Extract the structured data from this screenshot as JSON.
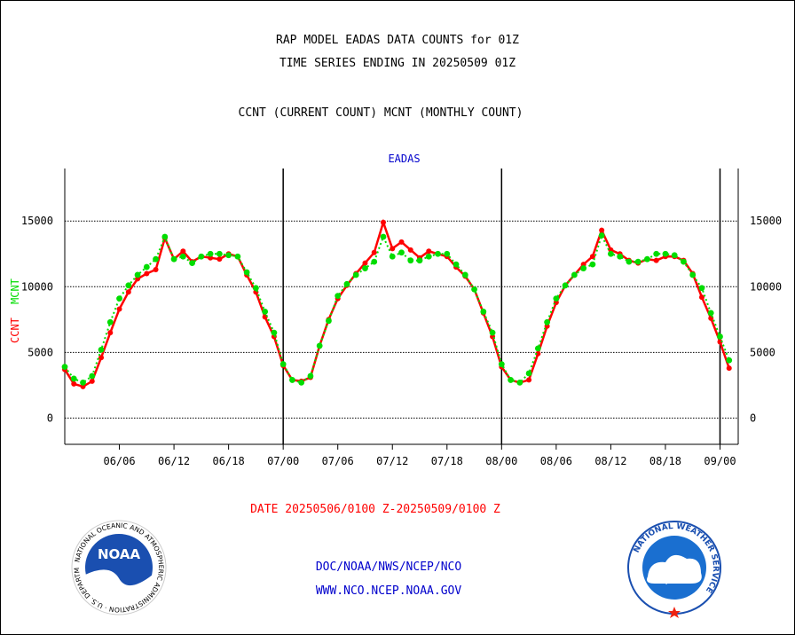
{
  "header": {
    "line1": "RAP MODEL EADAS DATA COUNTS for 01Z",
    "line2": "TIME SERIES ENDING IN 20250509 01Z",
    "line3": "CCNT (CURRENT COUNT) MCNT (MONTHLY COUNT)"
  },
  "colors": {
    "ccnt": "#ff0000",
    "mcnt": "#00ee00",
    "title": "#0000cc",
    "date": "#ff0000",
    "links": "#0000cc"
  },
  "chart_data": {
    "type": "line",
    "title": "EADAS",
    "ylabel_ccnt": "CCNT",
    "ylabel_mcnt": "MCNT",
    "xlim": [
      0,
      74
    ],
    "ylim": [
      -2000,
      19000
    ],
    "grid": true,
    "yticks": [
      0,
      5000,
      10000,
      15000
    ],
    "ytick_labels": [
      "0",
      "5000",
      "10000",
      "15000"
    ],
    "xticks": [
      {
        "x": 6,
        "label": "06/06"
      },
      {
        "x": 12,
        "label": "06/12"
      },
      {
        "x": 18,
        "label": "06/18"
      },
      {
        "x": 24,
        "label": "07/00"
      },
      {
        "x": 30,
        "label": "07/06"
      },
      {
        "x": 36,
        "label": "07/12"
      },
      {
        "x": 42,
        "label": "07/18"
      },
      {
        "x": 48,
        "label": "08/00"
      },
      {
        "x": 54,
        "label": "08/06"
      },
      {
        "x": 60,
        "label": "08/12"
      },
      {
        "x": 66,
        "label": "08/18"
      },
      {
        "x": 72,
        "label": "09/00"
      }
    ],
    "day_boundaries": [
      24,
      48,
      72
    ],
    "series": [
      {
        "name": "CCNT",
        "color": "#ff0000",
        "x": [
          0,
          1,
          2,
          3,
          4,
          5,
          6,
          7,
          8,
          9,
          10,
          11,
          12,
          13,
          14,
          15,
          16,
          17,
          18,
          19,
          20,
          21,
          22,
          23,
          24,
          25,
          26,
          27,
          28,
          29,
          30,
          31,
          32,
          33,
          34,
          35,
          36,
          37,
          38,
          39,
          40,
          41,
          42,
          43,
          44,
          45,
          46,
          47,
          48,
          49,
          50,
          51,
          52,
          53,
          54,
          55,
          56,
          57,
          58,
          59,
          60,
          61,
          62,
          63,
          64,
          65,
          66,
          67,
          68,
          69,
          70,
          71,
          72,
          73
        ],
        "values": [
          3700,
          2600,
          2400,
          2800,
          4600,
          6500,
          8300,
          9600,
          10600,
          11000,
          11300,
          13700,
          12100,
          12700,
          11900,
          12300,
          12200,
          12100,
          12500,
          12300,
          10900,
          9600,
          7700,
          6200,
          4000,
          2900,
          2800,
          3100,
          5500,
          7500,
          9100,
          10100,
          11000,
          11800,
          12600,
          14900,
          12900,
          13400,
          12800,
          12200,
          12700,
          12500,
          12300,
          11500,
          10800,
          9800,
          8000,
          6200,
          3900,
          2900,
          2700,
          2900,
          4900,
          7000,
          8800,
          10100,
          10900,
          11700,
          12300,
          14300,
          12800,
          12500,
          12000,
          11800,
          12100,
          12000,
          12300,
          12300,
          12000,
          11000,
          9200,
          7600,
          5800,
          3800
        ]
      },
      {
        "name": "MCNT",
        "color": "#00dd00",
        "x": [
          0,
          1,
          2,
          3,
          4,
          5,
          6,
          7,
          8,
          9,
          10,
          11,
          12,
          13,
          14,
          15,
          16,
          17,
          18,
          19,
          20,
          21,
          22,
          23,
          24,
          25,
          26,
          27,
          28,
          29,
          30,
          31,
          32,
          33,
          34,
          35,
          36,
          37,
          38,
          39,
          40,
          41,
          42,
          43,
          44,
          45,
          46,
          47,
          48,
          49,
          50,
          51,
          52,
          53,
          54,
          55,
          56,
          57,
          58,
          59,
          60,
          61,
          62,
          63,
          64,
          65,
          66,
          67,
          68,
          69,
          70,
          71,
          72,
          73
        ],
        "values": [
          3900,
          3000,
          2700,
          3200,
          5200,
          7300,
          9100,
          10100,
          10900,
          11500,
          12100,
          13800,
          12100,
          12300,
          11800,
          12300,
          12500,
          12500,
          12400,
          12300,
          11100,
          9900,
          8100,
          6500,
          4100,
          2900,
          2700,
          3200,
          5500,
          7400,
          9300,
          10200,
          10900,
          11400,
          11900,
          13800,
          12300,
          12600,
          12000,
          12000,
          12300,
          12500,
          12500,
          11700,
          10900,
          9800,
          8100,
          6500,
          4100,
          2900,
          2700,
          3400,
          5300,
          7300,
          9100,
          10100,
          10900,
          11400,
          11700,
          13900,
          12500,
          12300,
          11900,
          11900,
          12100,
          12500,
          12500,
          12400,
          11900,
          10900,
          9900,
          8000,
          6200,
          4400
        ]
      }
    ],
    "xlabel": "DATE 20250506/0100 Z-20250509/0100 Z"
  },
  "footer": {
    "org": "DOC/NOAA/NWS/NCEP/NCO",
    "url": "WWW.NCO.NCEP.NOAA.GOV",
    "noaa_logo_text": "NOAA",
    "noaa_ring_text": "NATIONAL OCEANIC AND ATMOSPHERIC ADMINISTRATION",
    "noaa_dept_text": "U.S. DEPARTMENT OF COMMERCE",
    "nws_ring_text": "NATIONAL WEATHER SERVICE",
    "noaa_logo_icon": "noaa-logo-icon",
    "nws_logo_icon": "nws-logo-icon"
  }
}
